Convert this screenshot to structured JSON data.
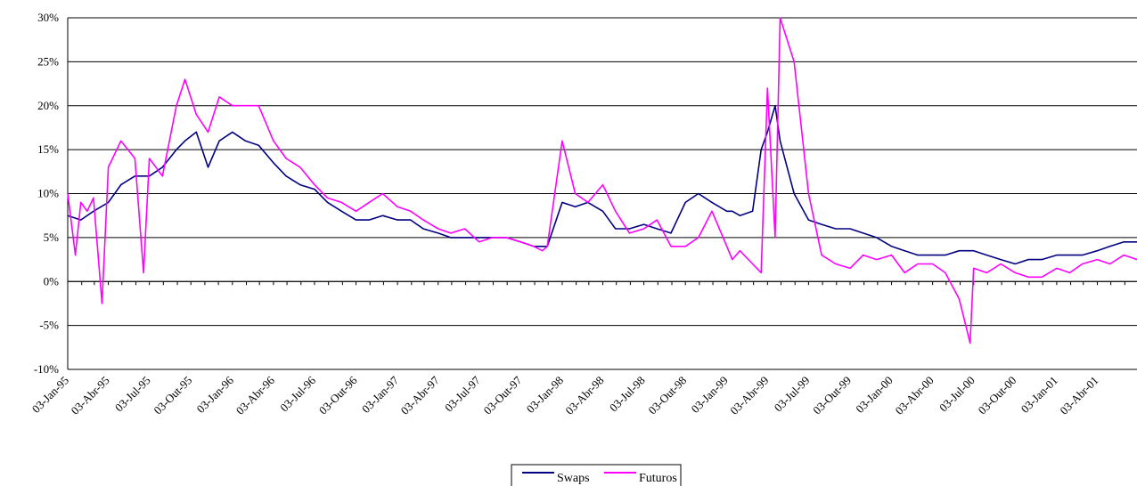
{
  "chart_data": {
    "type": "line",
    "title": "",
    "xlabel": "",
    "ylabel": "",
    "ylim": [
      -0.1,
      0.3
    ],
    "y_tick_labels": [
      "-10%",
      "-5%",
      "0%",
      "5%",
      "10%",
      "15%",
      "20%",
      "25%",
      "30%"
    ],
    "y_ticks": [
      -0.1,
      -0.05,
      0.0,
      0.05,
      0.1,
      0.15,
      0.2,
      0.25,
      0.3
    ],
    "x_range": [
      "03-Jan-95",
      "30-Jun-01"
    ],
    "x_tick_labels": [
      "03-Jan-95",
      "03-Abr-95",
      "03-Jul-95",
      "03-Out-95",
      "03-Jan-96",
      "03-Abr-96",
      "03-Jul-96",
      "03-Out-96",
      "03-Jan-97",
      "03-Abr-97",
      "03-Jul-97",
      "03-Out-97",
      "03-Jan-98",
      "03-Abr-98",
      "03-Jul-98",
      "03-Out-98",
      "03-Jan-99",
      "03-Abr-99",
      "03-Jul-99",
      "03-Out-99",
      "03-Jan-00",
      "03-Abr-00",
      "03-Jul-00",
      "03-Out-00",
      "03-Jan-01",
      "03-Abr-01"
    ],
    "grid": "horizontal",
    "legend_position": "bottom-center",
    "series": [
      {
        "name": "Swaps",
        "color": "#000080",
        "x": [
          "1995-01-03",
          "1995-02-01",
          "1995-03-01",
          "1995-04-03",
          "1995-05-01",
          "1995-06-01",
          "1995-07-03",
          "1995-08-01",
          "1995-09-01",
          "1995-09-20",
          "1995-10-15",
          "1995-11-10",
          "1995-12-05",
          "1996-01-03",
          "1996-02-01",
          "1996-03-01",
          "1996-04-03",
          "1996-05-01",
          "1996-06-01",
          "1996-07-03",
          "1996-08-01",
          "1996-09-01",
          "1996-10-03",
          "1996-11-01",
          "1996-12-01",
          "1997-01-03",
          "1997-02-01",
          "1997-03-01",
          "1997-04-03",
          "1997-05-01",
          "1997-06-01",
          "1997-07-03",
          "1997-08-01",
          "1997-09-01",
          "1997-10-03",
          "1997-11-01",
          "1997-11-20",
          "1997-12-01",
          "1998-01-03",
          "1998-02-01",
          "1998-03-01",
          "1998-04-03",
          "1998-05-01",
          "1998-06-01",
          "1998-07-03",
          "1998-08-01",
          "1998-09-01",
          "1998-10-03",
          "1998-11-01",
          "1998-12-01",
          "1999-01-03",
          "1999-01-15",
          "1999-02-01",
          "1999-03-01",
          "1999-03-20",
          "1999-04-03",
          "1999-04-20",
          "1999-05-01",
          "1999-06-01",
          "1999-07-03",
          "1999-08-01",
          "1999-09-01",
          "1999-10-03",
          "1999-11-01",
          "1999-12-01",
          "2000-01-03",
          "2000-02-01",
          "2000-03-01",
          "2000-04-03",
          "2000-05-01",
          "2000-06-01",
          "2000-07-03",
          "2000-08-01",
          "2000-09-01",
          "2000-10-03",
          "2000-11-01",
          "2000-12-01",
          "2001-01-03",
          "2001-02-01",
          "2001-03-01",
          "2001-04-03",
          "2001-05-01",
          "2001-06-01",
          "2001-06-30"
        ],
        "values": [
          0.075,
          0.07,
          0.08,
          0.09,
          0.11,
          0.12,
          0.12,
          0.13,
          0.15,
          0.16,
          0.17,
          0.13,
          0.16,
          0.17,
          0.16,
          0.155,
          0.135,
          0.12,
          0.11,
          0.105,
          0.09,
          0.08,
          0.07,
          0.07,
          0.075,
          0.07,
          0.07,
          0.06,
          0.055,
          0.05,
          0.05,
          0.05,
          0.05,
          0.05,
          0.045,
          0.04,
          0.04,
          0.04,
          0.09,
          0.085,
          0.09,
          0.08,
          0.06,
          0.06,
          0.065,
          0.06,
          0.055,
          0.09,
          0.1,
          0.09,
          0.08,
          0.08,
          0.075,
          0.08,
          0.15,
          0.17,
          0.2,
          0.16,
          0.1,
          0.07,
          0.065,
          0.06,
          0.06,
          0.055,
          0.05,
          0.04,
          0.035,
          0.03,
          0.03,
          0.03,
          0.035,
          0.035,
          0.03,
          0.025,
          0.02,
          0.025,
          0.025,
          0.03,
          0.03,
          0.03,
          0.035,
          0.04,
          0.045,
          0.045
        ]
      },
      {
        "name": "Futuros",
        "color": "#FF00FF",
        "x": [
          "1995-01-03",
          "1995-01-20",
          "1995-02-01",
          "1995-02-15",
          "1995-03-01",
          "1995-03-20",
          "1995-04-03",
          "1995-05-01",
          "1995-06-01",
          "1995-06-20",
          "1995-07-03",
          "1995-08-01",
          "1995-09-01",
          "1995-09-20",
          "1995-10-15",
          "1995-11-10",
          "1995-12-05",
          "1996-01-03",
          "1996-02-01",
          "1996-03-01",
          "1996-04-03",
          "1996-05-01",
          "1996-06-01",
          "1996-07-03",
          "1996-08-01",
          "1996-09-01",
          "1996-10-03",
          "1996-11-01",
          "1996-12-01",
          "1997-01-03",
          "1997-02-01",
          "1997-03-01",
          "1997-04-03",
          "1997-05-01",
          "1997-06-01",
          "1997-07-03",
          "1997-08-01",
          "1997-09-01",
          "1997-10-03",
          "1997-11-01",
          "1997-11-20",
          "1997-12-01",
          "1998-01-03",
          "1998-02-01",
          "1998-03-01",
          "1998-04-03",
          "1998-05-01",
          "1998-06-01",
          "1998-07-03",
          "1998-08-01",
          "1998-09-01",
          "1998-10-03",
          "1998-11-01",
          "1998-12-01",
          "1999-01-03",
          "1999-01-15",
          "1999-02-01",
          "1999-03-01",
          "1999-03-20",
          "1999-04-03",
          "1999-04-20",
          "1999-05-01",
          "1999-06-01",
          "1999-07-03",
          "1999-08-01",
          "1999-09-01",
          "1999-10-03",
          "1999-11-01",
          "1999-12-01",
          "2000-01-03",
          "2000-02-01",
          "2000-03-01",
          "2000-04-03",
          "2000-05-01",
          "2000-06-01",
          "2000-06-25",
          "2000-07-03",
          "2000-08-01",
          "2000-09-01",
          "2000-10-03",
          "2000-11-01",
          "2000-12-01",
          "2001-01-03",
          "2001-02-01",
          "2001-03-01",
          "2001-04-03",
          "2001-05-01",
          "2001-06-01",
          "2001-06-30"
        ],
        "values": [
          0.1,
          0.03,
          0.09,
          0.08,
          0.095,
          -0.025,
          0.13,
          0.16,
          0.14,
          0.01,
          0.14,
          0.12,
          0.2,
          0.23,
          0.19,
          0.17,
          0.21,
          0.2,
          0.2,
          0.2,
          0.16,
          0.14,
          0.13,
          0.11,
          0.095,
          0.09,
          0.08,
          0.09,
          0.1,
          0.085,
          0.08,
          0.07,
          0.06,
          0.055,
          0.06,
          0.045,
          0.05,
          0.05,
          0.045,
          0.04,
          0.035,
          0.04,
          0.16,
          0.1,
          0.09,
          0.11,
          0.08,
          0.055,
          0.06,
          0.07,
          0.04,
          0.04,
          0.05,
          0.08,
          0.04,
          0.025,
          0.035,
          0.02,
          0.01,
          0.22,
          0.05,
          0.3,
          0.25,
          0.1,
          0.03,
          0.02,
          0.015,
          0.03,
          0.025,
          0.03,
          0.01,
          0.02,
          0.02,
          0.01,
          -0.02,
          -0.07,
          0.015,
          0.01,
          0.02,
          0.01,
          0.005,
          0.005,
          0.015,
          0.01,
          0.02,
          0.025,
          0.02,
          0.03,
          0.025
        ]
      }
    ]
  },
  "legend": {
    "items": [
      {
        "label": "Swaps",
        "color": "#000080"
      },
      {
        "label": "Futuros",
        "color": "#FF00FF"
      }
    ]
  }
}
